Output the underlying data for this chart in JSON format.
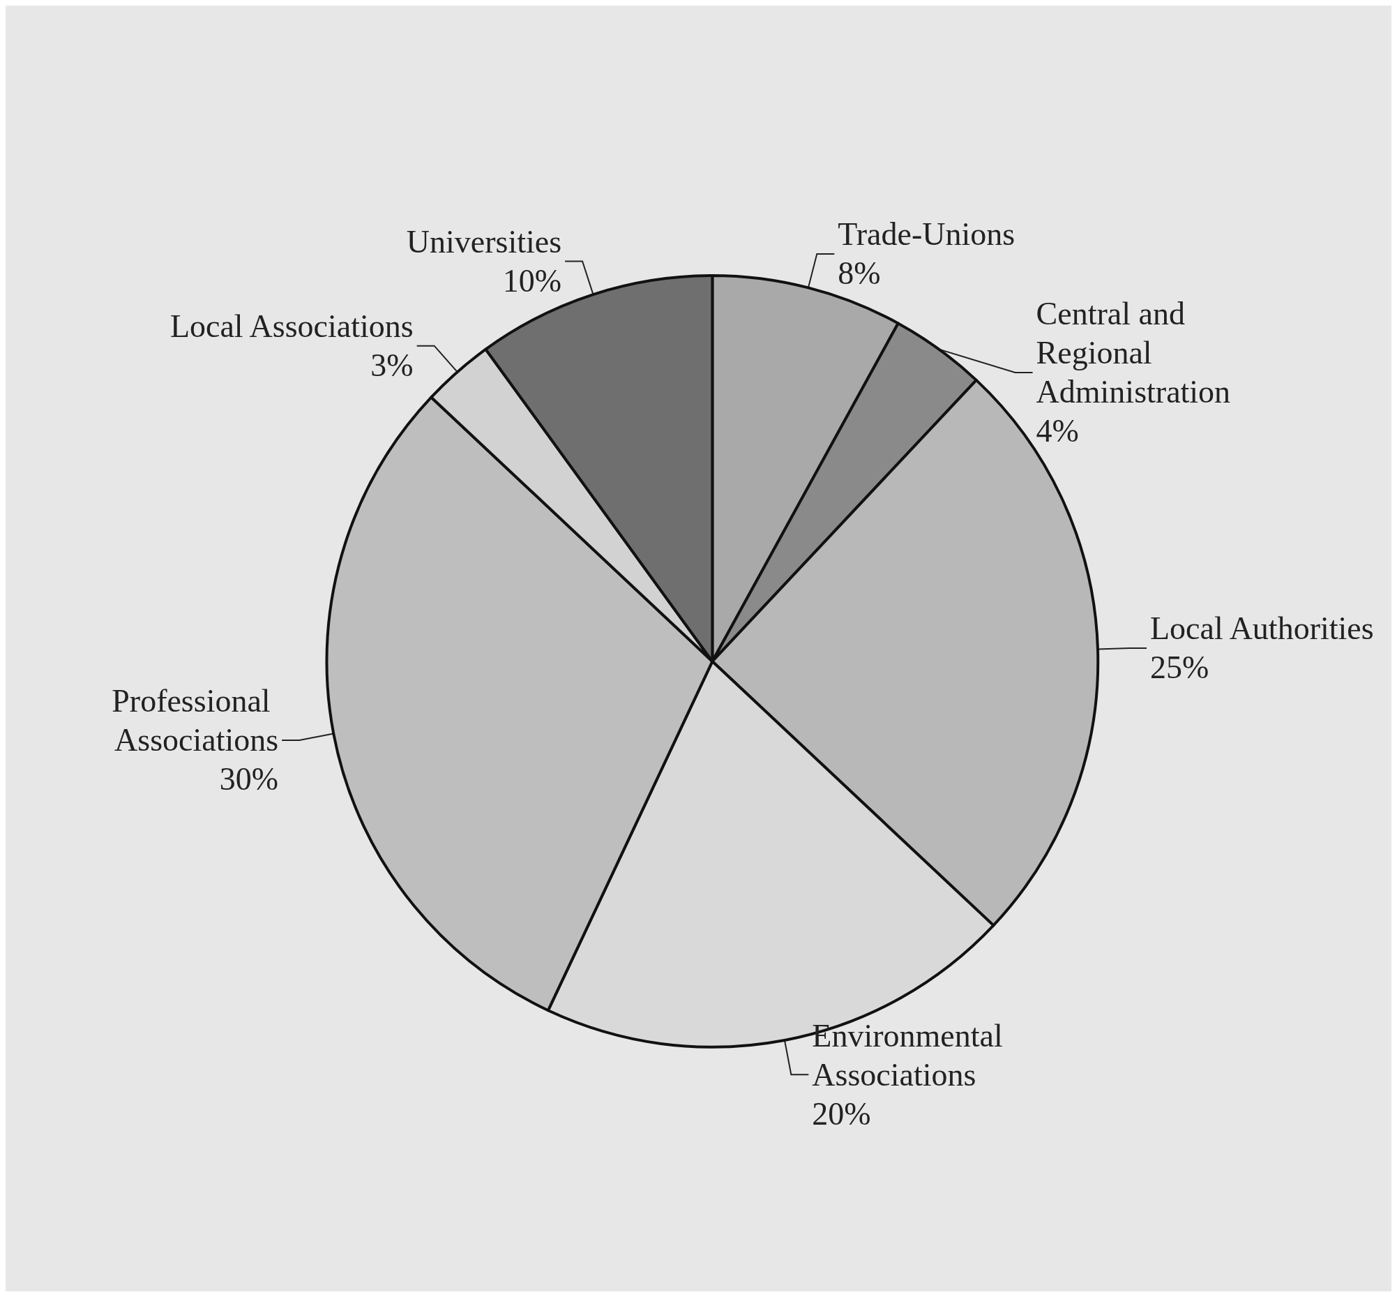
{
  "chart_data": {
    "type": "pie",
    "categories": [
      "Trade-Unions",
      "Central and Regional Administration",
      "Local Authorities",
      "Environmental Associations",
      "Professional Associations",
      "Local Associations",
      "Universities"
    ],
    "values": [
      8,
      4,
      25,
      20,
      30,
      3,
      10
    ],
    "value_labels": [
      "8%",
      "4%",
      "25%",
      "20%",
      "30%",
      "3%",
      "10%"
    ],
    "colors": [
      "#a9a9a9",
      "#8a8a8a",
      "#b8b8b8",
      "#d9d9d9",
      "#bebebe",
      "#d2d2d2",
      "#6f6f6f"
    ],
    "legend": false
  }
}
